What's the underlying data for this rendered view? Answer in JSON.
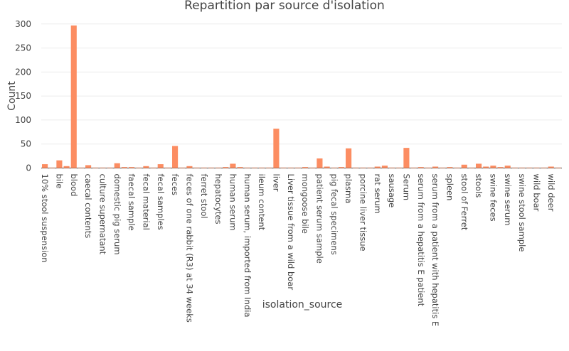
{
  "colors": {
    "bar": "#fc8d62",
    "grid": "#ebebeb",
    "text": "#444444",
    "background": "#ffffff"
  },
  "chart_data": {
    "type": "bar",
    "title": "Repartition par source d'isolation",
    "xlabel": "isolation_source",
    "ylabel": "Count",
    "ylim": [
      0,
      310
    ],
    "yticks": [
      0,
      50,
      100,
      150,
      200,
      250,
      300
    ],
    "grid": true,
    "categories": [
      "10% stool suspension",
      "",
      "bile",
      "",
      "blood",
      "",
      "caecal contents",
      "",
      "culture supernatant",
      "",
      "domestic pig serum",
      "",
      "faecal sample",
      "",
      "fecal material",
      "",
      "fecal samples",
      "",
      "feces",
      "",
      "feces of one rabbit (R3) at 34 weeks",
      "",
      "ferret stool",
      "",
      "hepatocytes",
      "",
      "human serum",
      "",
      "human serum, imported from India",
      "",
      "ileum content",
      "",
      "liver",
      "",
      "Liver tissue from a wild boar",
      "",
      "mongoose bile",
      "",
      "patient serum sample",
      "",
      "pig fecal specimens",
      "",
      "plasma",
      "",
      "porcine liver tissue",
      "",
      "rat serum",
      "",
      "sausage",
      "",
      "Serum",
      "",
      "serum from a hepatitis E patient",
      "",
      "serum from a patient with hepatitis E",
      "",
      "spleen",
      "",
      "stool of Ferret",
      "",
      "stools",
      "",
      "swine feces",
      "",
      "swine serum",
      "",
      "swine stool sample",
      "",
      "wild boar",
      "",
      "wild deer",
      ""
    ],
    "values": [
      8,
      1,
      16,
      4,
      297,
      1,
      6,
      1,
      1,
      1,
      10,
      2,
      2,
      1,
      4,
      1,
      8,
      1,
      46,
      1,
      4,
      1,
      1,
      1,
      1,
      2,
      9,
      2,
      1,
      1,
      1,
      1,
      82,
      1,
      1,
      1,
      2,
      1,
      20,
      3,
      1,
      2,
      41,
      1,
      1,
      1,
      3,
      5,
      1,
      1,
      42,
      1,
      2,
      1,
      3,
      1,
      2,
      1,
      7,
      1,
      9,
      3,
      5,
      2,
      5,
      1,
      1,
      1,
      1,
      1,
      3,
      1
    ]
  }
}
